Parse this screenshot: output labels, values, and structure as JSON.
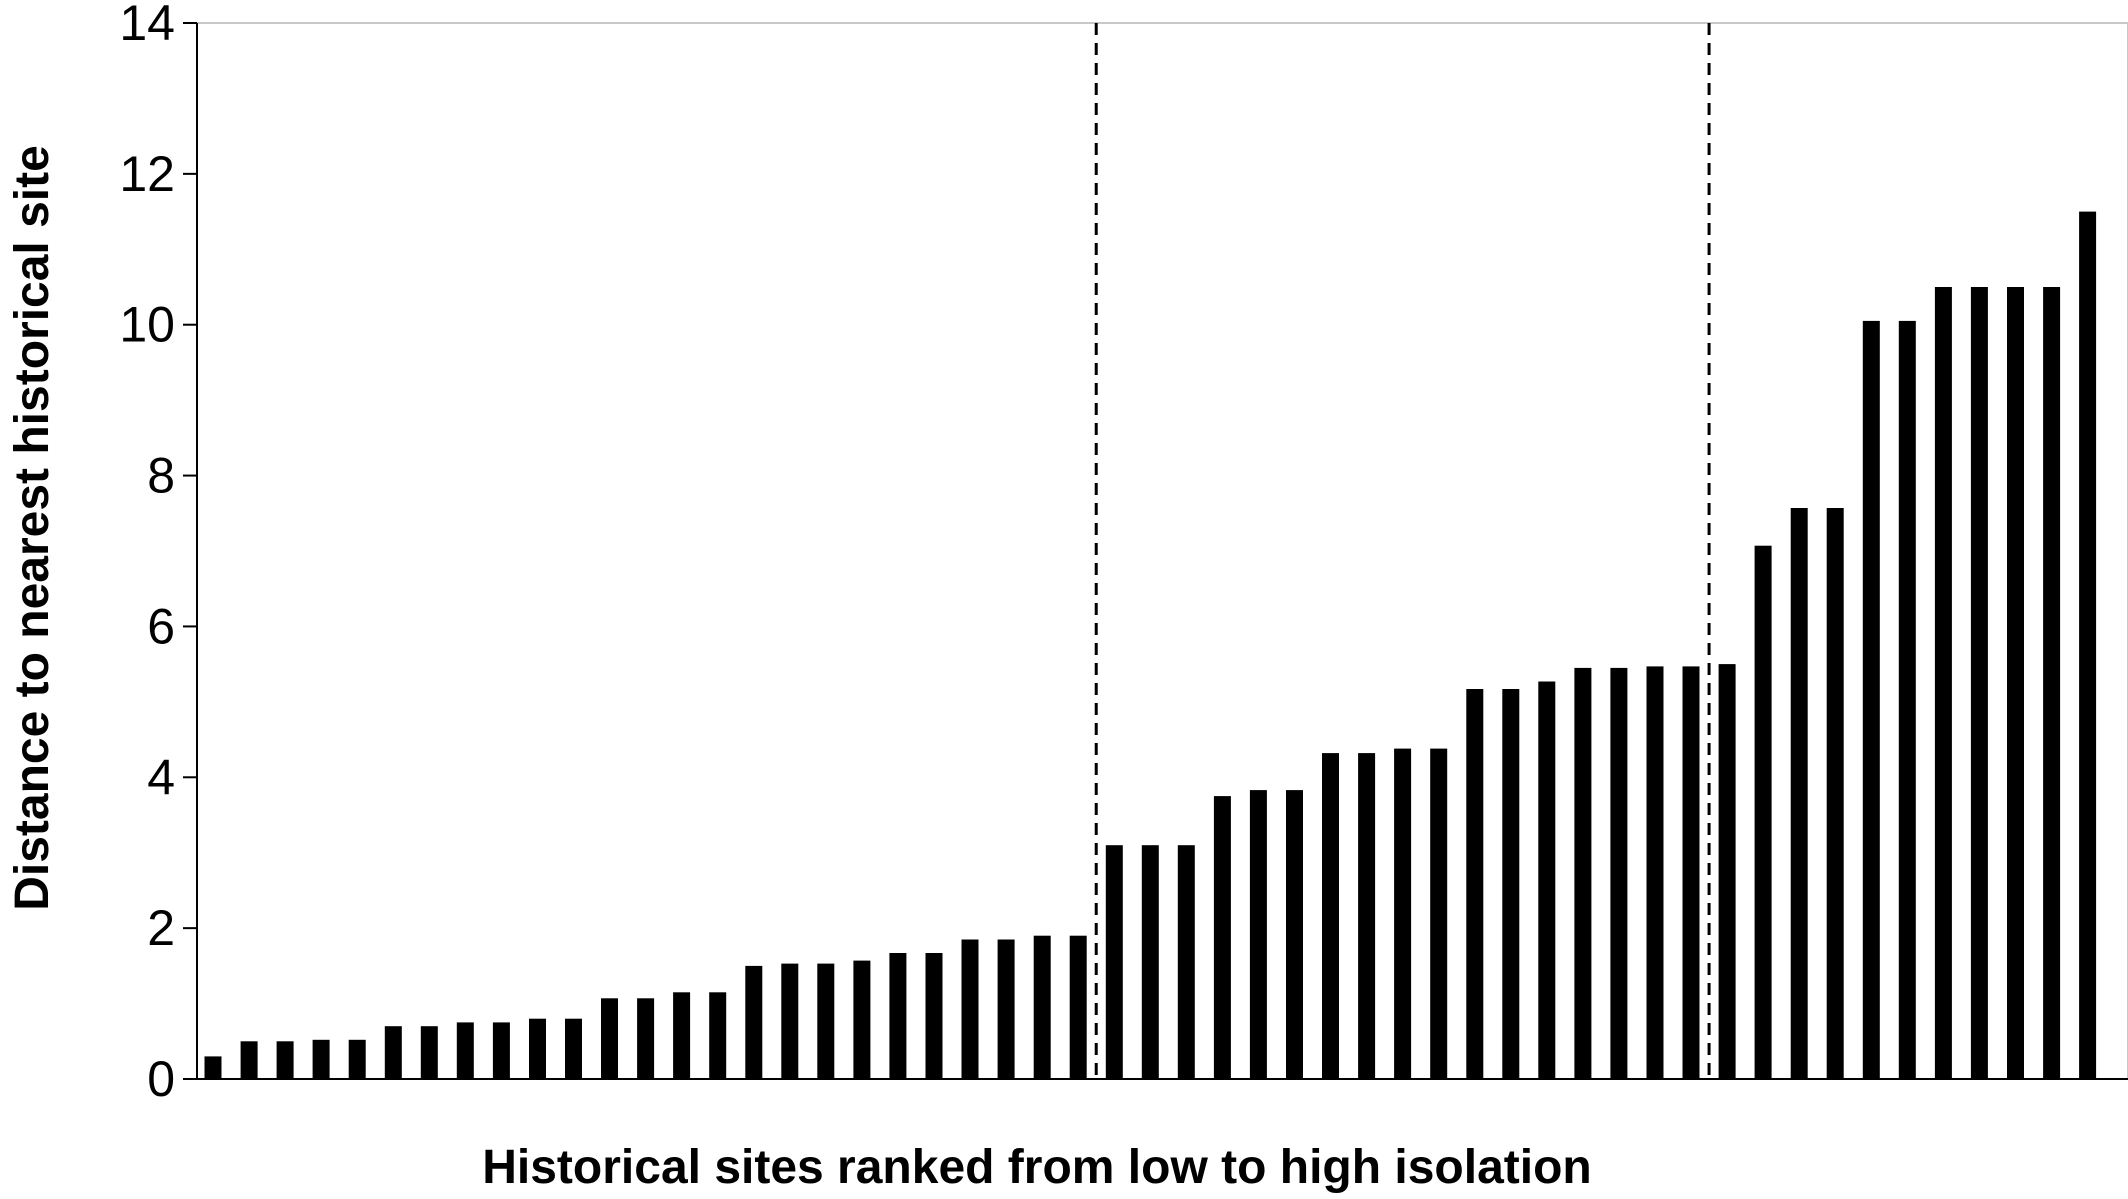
{
  "chart_data": {
    "type": "bar",
    "title": "",
    "xlabel": "Historical sites ranked from low to high isolation",
    "ylabel": "Distance to nearest historical site",
    "ylim": [
      0,
      14
    ],
    "yticks": [
      "0",
      "2",
      "4",
      "6",
      "8",
      "10",
      "12",
      "14"
    ],
    "grid": false,
    "legend": "none",
    "bar_color": "#000000",
    "frame_color": "#c8c8c8",
    "group_dividers_after_bar": [
      25,
      42
    ],
    "values": [
      0.3,
      0.5,
      0.5,
      0.52,
      0.52,
      0.7,
      0.7,
      0.75,
      0.75,
      0.8,
      0.8,
      1.07,
      1.07,
      1.15,
      1.15,
      1.5,
      1.53,
      1.53,
      1.57,
      1.67,
      1.67,
      1.85,
      1.85,
      1.9,
      1.9,
      3.1,
      3.1,
      3.1,
      3.75,
      3.83,
      3.83,
      4.32,
      4.32,
      4.38,
      4.38,
      5.17,
      5.17,
      5.27,
      5.45,
      5.45,
      5.47,
      5.47,
      5.5,
      7.07,
      7.57,
      7.57,
      10.05,
      10.05,
      10.5,
      10.5,
      10.5,
      10.5,
      11.5
    ]
  }
}
